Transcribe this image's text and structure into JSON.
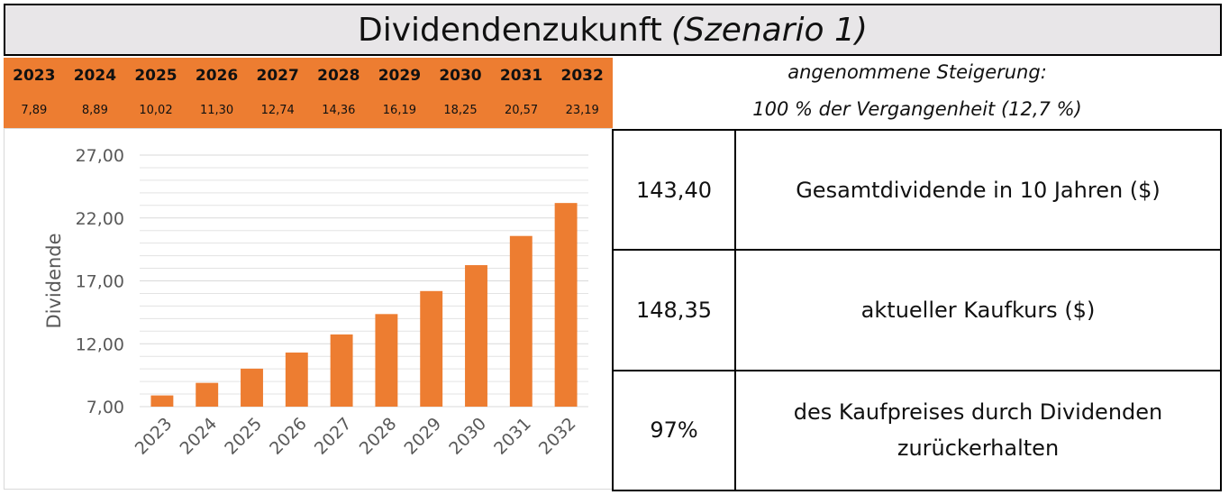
{
  "header": {
    "title": "Dividendenzukunft",
    "subtitle": "(Szenario 1)"
  },
  "assumption": {
    "line1": "angenommene Steigerung:",
    "line2": "100 % der Vergangenheit (12,7 %)"
  },
  "years_row": [
    {
      "year": "2023",
      "value": "7,89"
    },
    {
      "year": "2024",
      "value": "8,89"
    },
    {
      "year": "2025",
      "value": "10,02"
    },
    {
      "year": "2026",
      "value": "11,30"
    },
    {
      "year": "2027",
      "value": "12,74"
    },
    {
      "year": "2028",
      "value": "14,36"
    },
    {
      "year": "2029",
      "value": "16,19"
    },
    {
      "year": "2030",
      "value": "18,25"
    },
    {
      "year": "2031",
      "value": "20,57"
    },
    {
      "year": "2032",
      "value": "23,19"
    }
  ],
  "summary": [
    {
      "value": "143,40",
      "label": "Gesamtdividende in 10 Jahren ($)"
    },
    {
      "value": "148,35",
      "label": "aktueller Kaufkurs ($)"
    },
    {
      "value": "97%",
      "label": "des Kaufpreises durch Dividenden zurückerhalten"
    }
  ],
  "colors": {
    "accent": "#ed7d31",
    "title_bg": "#e8e6e8",
    "grid": "#e3e3e3",
    "axis_text": "#595959"
  },
  "chart_data": {
    "type": "bar",
    "categories": [
      "2023",
      "2024",
      "2025",
      "2026",
      "2027",
      "2028",
      "2029",
      "2030",
      "2031",
      "2032"
    ],
    "values": [
      7.89,
      8.89,
      10.02,
      11.3,
      12.74,
      14.36,
      16.19,
      18.25,
      20.57,
      23.19
    ],
    "ylabel": "Dividende",
    "xlabel": "",
    "ylim": [
      7,
      27
    ],
    "yticks": [
      7,
      12,
      17,
      22,
      27
    ],
    "ytick_labels": [
      "7,00",
      "12,00",
      "17,00",
      "22,00",
      "27,00"
    ],
    "minor_grid_step": 1,
    "grid": true,
    "legend": "none"
  }
}
